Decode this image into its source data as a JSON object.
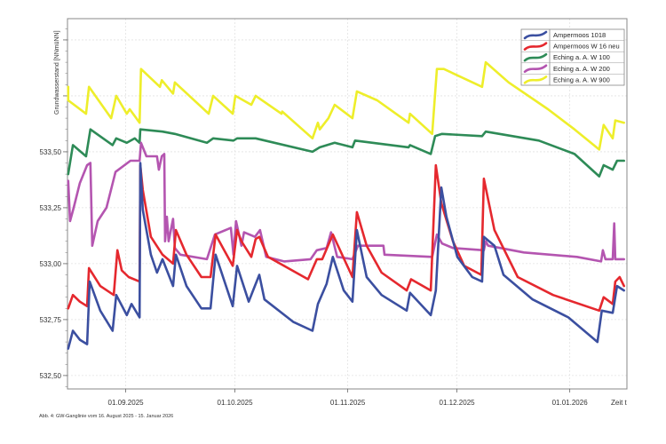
{
  "chart_data": {
    "type": "line",
    "title": "",
    "xlabel": "Zeit t",
    "ylabel": "Grundwasserstand [NNmüNN]",
    "caption": "Abb. 4: GW-Ganglinie vom 16. August 2025 - 15. Januar 2026",
    "x_unit": "days since 16.08.2025",
    "xlim": [
      0,
      153.7
    ],
    "ylim": [
      532.44,
      534.095
    ],
    "grid": true,
    "legend_position": "top-right",
    "x_ticks": [
      {
        "x": 16,
        "label": "01.09.2025"
      },
      {
        "x": 46,
        "label": "01.10.2025"
      },
      {
        "x": 77,
        "label": "01.11.2025"
      },
      {
        "x": 107,
        "label": "01.12.2025"
      },
      {
        "x": 138,
        "label": "01.01.2026"
      }
    ],
    "y_ticks": [
      {
        "y": 532.5,
        "label": "532,50"
      },
      {
        "y": 532.75,
        "label": "532,75"
      },
      {
        "y": 533.0,
        "label": "533,00"
      },
      {
        "y": 533.25,
        "label": "533,25"
      },
      {
        "y": 533.5,
        "label": "533,50"
      },
      {
        "y": 533.75,
        "label": ""
      },
      {
        "y": 534.0,
        "label": ""
      }
    ],
    "series": [
      {
        "name": "Ampermoos 1018",
        "color": "#3b4fa0",
        "points": [
          [
            0.2,
            532.62
          ],
          [
            1.5,
            532.7
          ],
          [
            3.4,
            532.66
          ],
          [
            5.4,
            532.64
          ],
          [
            6.1,
            532.92
          ],
          [
            9.0,
            532.79
          ],
          [
            12.4,
            532.7
          ],
          [
            13.4,
            532.86
          ],
          [
            16.3,
            532.77
          ],
          [
            17.6,
            532.82
          ],
          [
            19.8,
            532.76
          ],
          [
            20.0,
            533.45
          ],
          [
            20.7,
            533.24
          ],
          [
            22.9,
            533.04
          ],
          [
            24.6,
            532.96
          ],
          [
            26.1,
            533.02
          ],
          [
            29.0,
            532.9
          ],
          [
            29.8,
            533.04
          ],
          [
            32.7,
            532.9
          ],
          [
            36.8,
            532.8
          ],
          [
            39.3,
            532.8
          ],
          [
            40.7,
            533.04
          ],
          [
            45.4,
            532.81
          ],
          [
            46.6,
            532.99
          ],
          [
            49.8,
            532.83
          ],
          [
            51.0,
            532.88
          ],
          [
            52.7,
            532.95
          ],
          [
            54.1,
            532.84
          ],
          [
            62.0,
            532.74
          ],
          [
            67.3,
            532.7
          ],
          [
            68.8,
            532.82
          ],
          [
            71.2,
            532.91
          ],
          [
            72.9,
            533.03
          ],
          [
            75.9,
            532.88
          ],
          [
            78.3,
            532.83
          ],
          [
            79.5,
            533.15
          ],
          [
            82.2,
            532.94
          ],
          [
            86.3,
            532.86
          ],
          [
            93.2,
            532.79
          ],
          [
            94.1,
            532.87
          ],
          [
            99.8,
            532.77
          ],
          [
            101.2,
            532.88
          ],
          [
            102.7,
            533.34
          ],
          [
            104.1,
            533.21
          ],
          [
            107.1,
            533.03
          ],
          [
            111.2,
            532.94
          ],
          [
            113.9,
            532.92
          ],
          [
            114.4,
            533.12
          ],
          [
            117.3,
            533.08
          ],
          [
            119.8,
            532.95
          ],
          [
            127.8,
            532.84
          ],
          [
            137.6,
            532.76
          ],
          [
            145.6,
            532.65
          ],
          [
            146.8,
            532.79
          ],
          [
            149.8,
            532.78
          ],
          [
            151.0,
            532.9
          ],
          [
            152.9,
            532.88
          ]
        ]
      },
      {
        "name": "Ampermoos W 16 neu",
        "color": "#e5282e",
        "points": [
          [
            0.2,
            532.8
          ],
          [
            1.5,
            532.86
          ],
          [
            3.4,
            532.83
          ],
          [
            5.4,
            532.81
          ],
          [
            5.9,
            532.98
          ],
          [
            9.0,
            532.9
          ],
          [
            12.7,
            532.86
          ],
          [
            13.7,
            533.06
          ],
          [
            14.9,
            532.97
          ],
          [
            16.8,
            532.94
          ],
          [
            19.8,
            532.92
          ],
          [
            20.0,
            533.44
          ],
          [
            20.7,
            533.33
          ],
          [
            22.9,
            533.12
          ],
          [
            26.1,
            533.04
          ],
          [
            29.0,
            533.0
          ],
          [
            29.8,
            533.15
          ],
          [
            32.7,
            533.04
          ],
          [
            36.8,
            532.94
          ],
          [
            39.3,
            532.94
          ],
          [
            40.7,
            533.13
          ],
          [
            45.4,
            532.99
          ],
          [
            46.6,
            533.15
          ],
          [
            47.8,
            533.1
          ],
          [
            50.5,
            533.03
          ],
          [
            51.7,
            533.11
          ],
          [
            52.7,
            533.12
          ],
          [
            55.1,
            533.03
          ],
          [
            66.1,
            532.93
          ],
          [
            68.5,
            533.02
          ],
          [
            70.0,
            533.02
          ],
          [
            72.9,
            533.13
          ],
          [
            78.3,
            532.94
          ],
          [
            79.5,
            533.23
          ],
          [
            82.2,
            533.08
          ],
          [
            86.3,
            532.96
          ],
          [
            93.2,
            532.88
          ],
          [
            94.4,
            532.93
          ],
          [
            99.8,
            532.88
          ],
          [
            101.2,
            533.44
          ],
          [
            102.7,
            533.27
          ],
          [
            105.9,
            533.1
          ],
          [
            109.0,
            532.99
          ],
          [
            113.7,
            532.95
          ],
          [
            114.4,
            533.38
          ],
          [
            117.3,
            533.15
          ],
          [
            123.7,
            532.94
          ],
          [
            133.4,
            532.86
          ],
          [
            146.1,
            532.79
          ],
          [
            147.3,
            532.85
          ],
          [
            149.8,
            532.82
          ],
          [
            150.5,
            532.92
          ],
          [
            151.7,
            532.94
          ],
          [
            152.9,
            532.9
          ]
        ]
      },
      {
        "name": "Eching a. A. W 100",
        "color": "#2e8b57",
        "points": [
          [
            0.2,
            533.4
          ],
          [
            1.5,
            533.53
          ],
          [
            5.1,
            533.48
          ],
          [
            6.3,
            533.6
          ],
          [
            12.4,
            533.53
          ],
          [
            13.4,
            533.56
          ],
          [
            16.3,
            533.54
          ],
          [
            18.5,
            533.56
          ],
          [
            19.8,
            533.54
          ],
          [
            20.0,
            533.6
          ],
          [
            26.1,
            533.59
          ],
          [
            29.5,
            533.58
          ],
          [
            38.3,
            533.54
          ],
          [
            40.0,
            533.56
          ],
          [
            45.6,
            533.55
          ],
          [
            46.6,
            533.56
          ],
          [
            51.7,
            533.56
          ],
          [
            67.3,
            533.5
          ],
          [
            69.3,
            533.52
          ],
          [
            73.4,
            533.54
          ],
          [
            78.3,
            533.52
          ],
          [
            79.0,
            533.55
          ],
          [
            93.7,
            533.52
          ],
          [
            94.1,
            533.53
          ],
          [
            99.8,
            533.49
          ],
          [
            101.0,
            533.57
          ],
          [
            102.9,
            533.58
          ],
          [
            113.9,
            533.57
          ],
          [
            114.9,
            533.59
          ],
          [
            129.5,
            533.55
          ],
          [
            139.3,
            533.49
          ],
          [
            146.1,
            533.39
          ],
          [
            147.3,
            533.44
          ],
          [
            149.8,
            533.42
          ],
          [
            151.0,
            533.46
          ],
          [
            152.9,
            533.46
          ]
        ]
      },
      {
        "name": "Eching a. A. W 200",
        "color": "#b455b0",
        "points": [
          [
            0.2,
            533.37
          ],
          [
            0.7,
            533.19
          ],
          [
            1.7,
            533.25
          ],
          [
            3.4,
            533.36
          ],
          [
            5.4,
            533.44
          ],
          [
            6.3,
            533.45
          ],
          [
            6.8,
            533.08
          ],
          [
            8.3,
            533.19
          ],
          [
            10.7,
            533.25
          ],
          [
            13.2,
            533.41
          ],
          [
            17.3,
            533.46
          ],
          [
            19.8,
            533.46
          ],
          [
            20.2,
            533.54
          ],
          [
            21.7,
            533.48
          ],
          [
            24.6,
            533.48
          ],
          [
            25.1,
            533.42
          ],
          [
            25.9,
            533.48
          ],
          [
            26.6,
            533.49
          ],
          [
            26.8,
            533.1
          ],
          [
            27.3,
            533.21
          ],
          [
            27.8,
            533.1
          ],
          [
            29.0,
            533.2
          ],
          [
            29.5,
            533.07
          ],
          [
            31.0,
            533.04
          ],
          [
            38.3,
            533.02
          ],
          [
            40.5,
            533.13
          ],
          [
            44.9,
            533.16
          ],
          [
            45.6,
            533.04
          ],
          [
            46.3,
            533.19
          ],
          [
            47.8,
            533.08
          ],
          [
            48.5,
            533.14
          ],
          [
            51.5,
            533.12
          ],
          [
            52.9,
            533.15
          ],
          [
            54.6,
            533.03
          ],
          [
            59.5,
            533.01
          ],
          [
            66.8,
            533.02
          ],
          [
            68.5,
            533.06
          ],
          [
            71.2,
            533.07
          ],
          [
            72.4,
            533.14
          ],
          [
            74.1,
            533.03
          ],
          [
            78.3,
            533.02
          ],
          [
            79.8,
            533.08
          ],
          [
            86.8,
            533.08
          ],
          [
            87.1,
            533.04
          ],
          [
            100.2,
            533.03
          ],
          [
            101.5,
            533.13
          ],
          [
            102.9,
            533.09
          ],
          [
            105.9,
            533.07
          ],
          [
            114.4,
            533.06
          ],
          [
            114.9,
            533.1
          ],
          [
            115.6,
            533.08
          ],
          [
            125.4,
            533.05
          ],
          [
            140.0,
            533.03
          ],
          [
            146.6,
            533.01
          ],
          [
            147.1,
            533.06
          ],
          [
            147.8,
            533.02
          ],
          [
            149.8,
            533.02
          ],
          [
            150.2,
            533.18
          ],
          [
            150.5,
            533.02
          ],
          [
            152.9,
            533.02
          ]
        ]
      },
      {
        "name": "Eching a. A. W 900",
        "color": "#eeee2a",
        "points": [
          [
            0.2,
            533.79
          ],
          [
            0.2,
            533.73
          ],
          [
            5.1,
            533.67
          ],
          [
            5.9,
            533.79
          ],
          [
            12.0,
            533.65
          ],
          [
            13.4,
            533.75
          ],
          [
            16.3,
            533.67
          ],
          [
            17.1,
            533.69
          ],
          [
            19.8,
            533.63
          ],
          [
            20.2,
            533.87
          ],
          [
            25.4,
            533.79
          ],
          [
            25.9,
            533.82
          ],
          [
            29.0,
            533.76
          ],
          [
            29.5,
            533.81
          ],
          [
            38.8,
            533.67
          ],
          [
            40.0,
            533.75
          ],
          [
            45.4,
            533.67
          ],
          [
            46.1,
            533.75
          ],
          [
            50.5,
            533.71
          ],
          [
            51.7,
            533.75
          ],
          [
            58.8,
            533.67
          ],
          [
            59.0,
            533.68
          ],
          [
            67.3,
            533.56
          ],
          [
            68.8,
            533.63
          ],
          [
            69.3,
            533.6
          ],
          [
            71.7,
            533.65
          ],
          [
            73.4,
            533.71
          ],
          [
            78.3,
            533.65
          ],
          [
            79.5,
            533.77
          ],
          [
            85.1,
            533.73
          ],
          [
            93.7,
            533.63
          ],
          [
            94.1,
            533.67
          ],
          [
            100.2,
            533.58
          ],
          [
            101.5,
            533.87
          ],
          [
            103.4,
            533.87
          ],
          [
            113.9,
            533.79
          ],
          [
            114.9,
            533.9
          ],
          [
            121.2,
            533.81
          ],
          [
            132.0,
            533.69
          ],
          [
            139.3,
            533.6
          ],
          [
            146.1,
            533.51
          ],
          [
            147.3,
            533.62
          ],
          [
            149.8,
            533.56
          ],
          [
            150.5,
            533.64
          ],
          [
            152.9,
            533.63
          ]
        ]
      }
    ]
  }
}
